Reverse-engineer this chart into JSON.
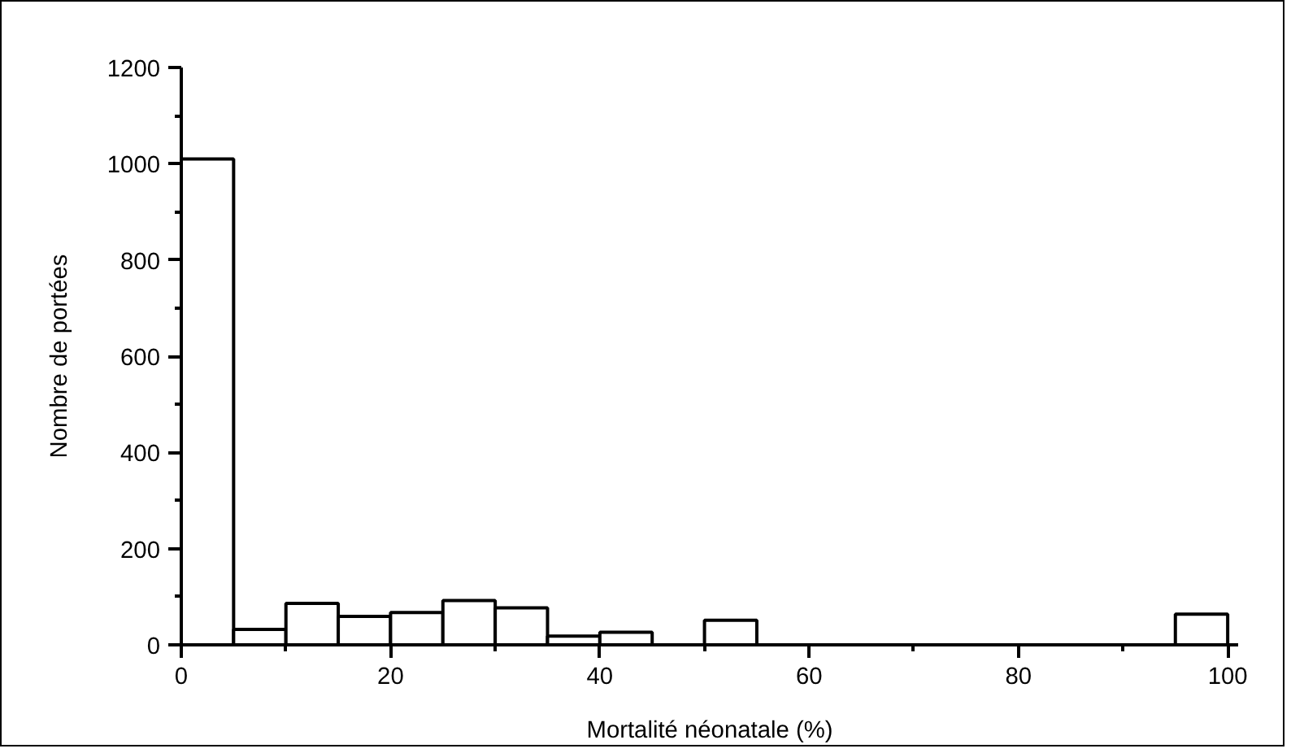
{
  "chart_data": {
    "type": "histogram",
    "xlabel": "Mortalité néonatale (%)",
    "ylabel": "Nombre de portées",
    "bins": [
      0,
      5,
      10,
      15,
      20,
      25,
      30,
      35,
      40,
      45,
      50,
      55,
      60,
      65,
      70,
      75,
      80,
      85,
      90,
      95,
      100
    ],
    "values": [
      1010,
      32,
      86,
      59,
      67,
      92,
      77,
      18,
      26,
      0,
      51,
      0,
      null,
      null,
      0,
      null,
      null,
      0,
      0,
      64
    ],
    "color": "#ffffff",
    "xlim": [
      0,
      101
    ],
    "ylim": [
      0,
      1200
    ],
    "xticks": [
      0,
      20,
      40,
      60,
      80,
      100
    ],
    "yticks": [
      0,
      200,
      400,
      600,
      800,
      1000,
      1200
    ],
    "grid": false
  }
}
